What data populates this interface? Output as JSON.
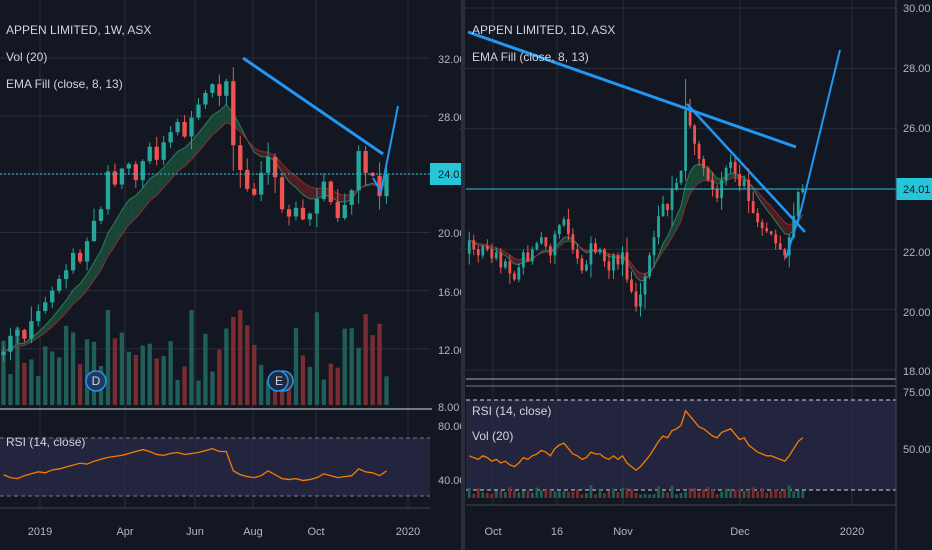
{
  "colors": {
    "bg": "#131722",
    "grid": "#2a2e39",
    "up": "#26a69a",
    "down": "#ef5350",
    "trend": "#2196f3",
    "price_line": "#26c6da",
    "rsi": "#f57c00",
    "rsi_band": "#2a2b4a"
  },
  "left": {
    "title": "APPEN LIMITED, 1W, ASX",
    "vol_label": "Vol (20)",
    "ema_label": "EMA Fill (close, 8, 13)",
    "rsi_label": "RSI (14, close)",
    "price_axis": [
      "32.00",
      "28.00",
      "24.00",
      "20.00",
      "16.00",
      "12.00",
      "8.00"
    ],
    "rsi_axis": [
      "80.00",
      "40.00"
    ],
    "current_price": "24.01",
    "time_axis": [
      "2019",
      "Apr",
      "Jun",
      "Aug",
      "Oct",
      "2020"
    ],
    "markers": [
      {
        "text": "D",
        "icon": "dividend-marker"
      },
      {
        "text": "E",
        "icon": "earnings-marker"
      }
    ]
  },
  "right": {
    "title": "APPEN LIMITED, 1D, ASX",
    "ema_label": "EMA Fill (close, 8, 13)",
    "rsi_label": "RSI (14, close)",
    "vol_label": "Vol (20)",
    "price_axis": [
      "30.00",
      "28.00",
      "26.00",
      "24.00",
      "22.00",
      "20.00",
      "18.00"
    ],
    "rsi_axis": [
      "75.00",
      "50.00"
    ],
    "current_price": "24.01",
    "time_axis": [
      "Oct",
      "16",
      "Nov",
      "Dec",
      "2020"
    ]
  },
  "chart_data": [
    {
      "type": "candlestick",
      "interval": "1W",
      "title": "APPEN LIMITED, 1W, ASX",
      "ylim": [
        8,
        33
      ],
      "last_close": 24.01,
      "closes": [
        11.8,
        12.9,
        13.3,
        12.7,
        13.9,
        14.6,
        15.2,
        16.0,
        16.8,
        17.4,
        18.6,
        18.0,
        19.4,
        20.8,
        21.6,
        24.2,
        23.3,
        24.4,
        24.7,
        23.6,
        24.9,
        25.9,
        25.0,
        26.2,
        26.9,
        27.6,
        26.6,
        27.9,
        28.8,
        29.6,
        30.2,
        29.4,
        30.4,
        26.0,
        24.3,
        23.0,
        22.6,
        24.1,
        25.2,
        23.8,
        21.6,
        21.1,
        21.7,
        20.9,
        21.3,
        22.3,
        23.5,
        22.1,
        21.0,
        21.9,
        22.9,
        25.6,
        24.1,
        23.9,
        22.5,
        24.01
      ],
      "rsi": [
        52,
        49,
        48,
        51,
        53,
        55,
        54,
        57,
        58,
        60,
        62,
        64,
        63,
        66,
        68,
        70,
        71,
        72,
        74,
        76,
        78,
        76,
        73,
        72,
        74,
        75,
        73,
        74,
        75,
        77,
        79,
        76,
        76,
        56,
        52,
        50,
        49,
        51,
        56,
        52,
        48,
        47,
        48,
        46,
        47,
        49,
        53,
        51,
        49,
        50,
        51,
        58,
        55,
        54,
        51,
        56
      ]
    },
    {
      "type": "candlestick",
      "interval": "1D",
      "title": "APPEN LIMITED, 1D, ASX",
      "ylim": [
        17.7,
        30.3
      ],
      "last_close": 24.01,
      "closes": [
        22.3,
        22.0,
        21.8,
        22.1,
        22.0,
        21.7,
        21.9,
        21.4,
        21.6,
        21.2,
        21.0,
        21.4,
        21.9,
        21.6,
        22.0,
        22.2,
        22.4,
        22.1,
        21.8,
        22.5,
        22.8,
        23.0,
        22.5,
        22.0,
        21.7,
        21.3,
        21.5,
        22.2,
        21.9,
        22.0,
        21.6,
        21.3,
        21.8,
        21.5,
        21.9,
        21.0,
        20.6,
        20.1,
        20.5,
        21.1,
        21.8,
        22.4,
        23.1,
        23.5,
        23.3,
        24.0,
        24.2,
        24.6,
        26.6,
        26.1,
        25.5,
        25.0,
        24.7,
        24.3,
        24.0,
        23.7,
        24.3,
        24.7,
        24.9,
        24.5,
        24.1,
        24.3,
        23.6,
        23.2,
        22.9,
        22.7,
        22.6,
        22.5,
        22.2,
        22.0,
        21.8,
        22.4,
        23.1,
        23.9,
        24.01
      ],
      "rsi": [
        49,
        48,
        47,
        49,
        48,
        46,
        47,
        45,
        46,
        44,
        43,
        45,
        48,
        47,
        49,
        50,
        52,
        51,
        49,
        53,
        55,
        56,
        53,
        50,
        49,
        47,
        48,
        51,
        50,
        50,
        48,
        47,
        49,
        47,
        49,
        45,
        43,
        41,
        43,
        46,
        49,
        53,
        57,
        60,
        59,
        63,
        64,
        66,
        74,
        71,
        68,
        65,
        64,
        62,
        60,
        59,
        62,
        63,
        64,
        61,
        58,
        59,
        55,
        53,
        51,
        50,
        49,
        49,
        48,
        47,
        46,
        49,
        53,
        57,
        59
      ]
    }
  ]
}
